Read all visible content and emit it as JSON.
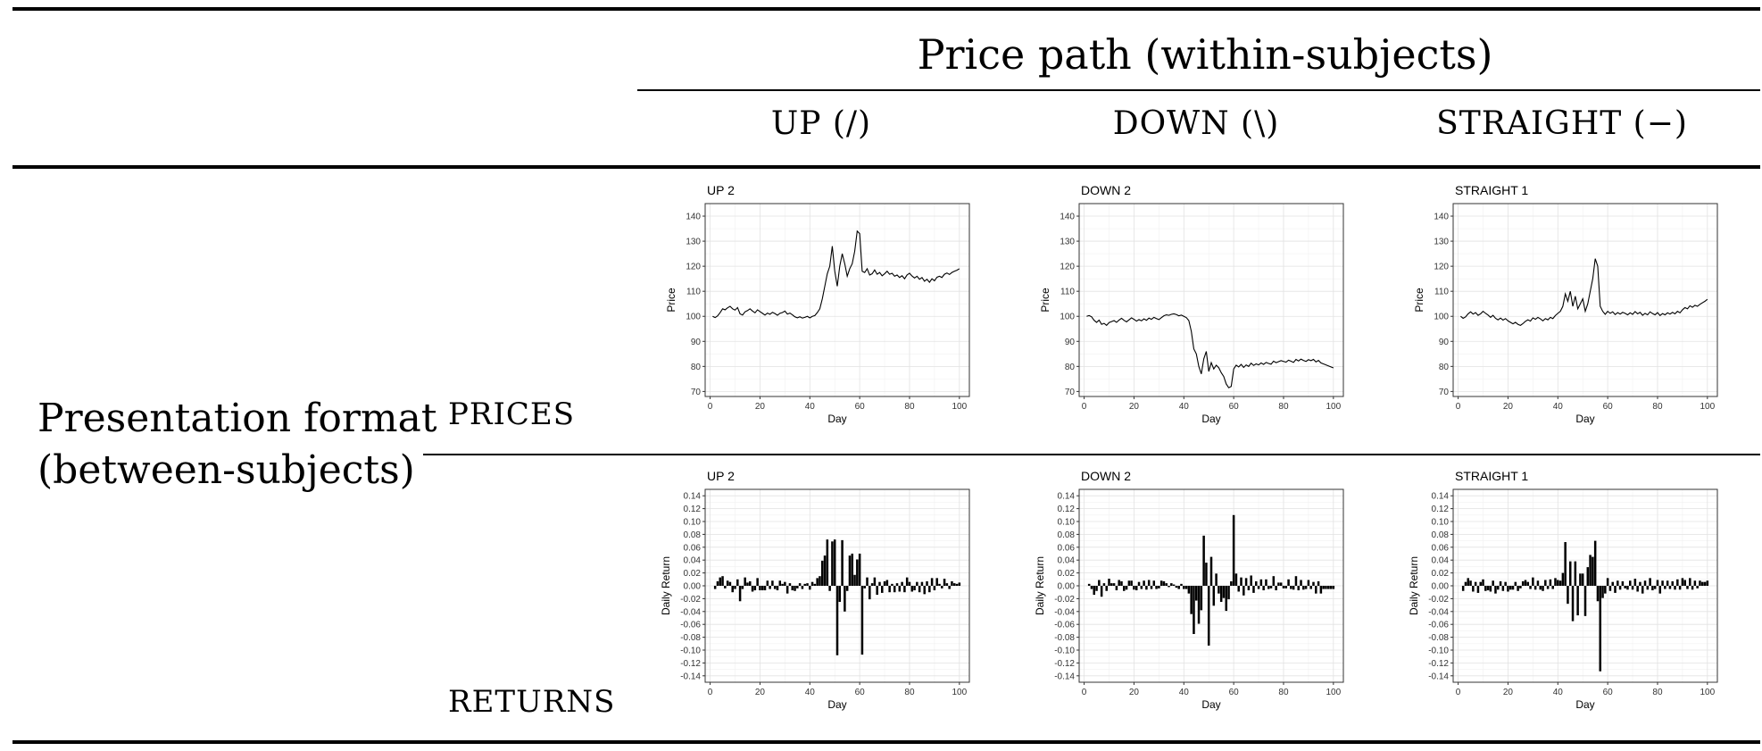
{
  "header": {
    "title": "Price path (within-subjects)",
    "columns": [
      "UP (/)",
      "DOWN (\\)",
      "STRAIGHT (−)"
    ]
  },
  "side_label": {
    "line1": "Presentation format",
    "line2": "(between-subjects)"
  },
  "rows": [
    "PRICES",
    "RETURNS"
  ],
  "chart_data": [
    {
      "type": "line",
      "title": "UP 2",
      "xlabel": "Day",
      "ylabel": "Price",
      "xlim": [
        0,
        100
      ],
      "ylim": [
        68,
        145
      ],
      "xticks": [
        0,
        20,
        40,
        60,
        80,
        100
      ],
      "yticks": [
        70,
        80,
        90,
        100,
        110,
        120,
        130,
        140
      ],
      "grid": true,
      "x": [
        1,
        2,
        3,
        4,
        5,
        6,
        7,
        8,
        9,
        10,
        11,
        12,
        13,
        14,
        15,
        16,
        17,
        18,
        19,
        20,
        21,
        22,
        23,
        24,
        25,
        26,
        27,
        28,
        29,
        30,
        31,
        32,
        33,
        34,
        35,
        36,
        37,
        38,
        39,
        40,
        41,
        42,
        43,
        44,
        45,
        46,
        47,
        48,
        49,
        50,
        51,
        52,
        53,
        54,
        55,
        56,
        57,
        58,
        59,
        60,
        61,
        62,
        63,
        64,
        65,
        66,
        67,
        68,
        69,
        70,
        71,
        72,
        73,
        74,
        75,
        76,
        77,
        78,
        79,
        80,
        81,
        82,
        83,
        84,
        85,
        86,
        87,
        88,
        89,
        90,
        91,
        92,
        93,
        94,
        95,
        96,
        97,
        98,
        99,
        100
      ],
      "y": [
        100,
        99.5,
        100.2,
        101.5,
        103,
        102.6,
        103.4,
        104,
        103,
        102.5,
        103.5,
        101,
        100.5,
        101.8,
        102.3,
        103,
        102.1,
        101.4,
        102.6,
        101.9,
        101.2,
        100.5,
        101.3,
        100.8,
        101.6,
        101.1,
        100.4,
        101.2,
        101.5,
        102.1,
        100.9,
        101.3,
        100.6,
        99.8,
        99.4,
        99.8,
        99.3,
        99.6,
        100,
        99.4,
        100,
        100.3,
        101.5,
        103,
        107,
        112,
        117,
        120,
        128,
        118,
        112,
        120,
        125,
        121,
        116,
        119,
        121,
        126,
        134,
        133,
        118,
        117.5,
        119,
        116.5,
        117,
        118.5,
        116.8,
        117.5,
        116.2,
        117,
        118,
        116.8,
        117.2,
        116,
        116.5,
        115.5,
        116.2,
        115,
        116.5,
        117.2,
        116.1,
        115.3,
        116,
        114.8,
        115.5,
        114,
        114.8,
        113.6,
        115,
        114.2,
        115.6,
        116,
        115.5,
        116.8,
        117.3,
        116.7,
        117.5,
        118,
        118.4,
        119
      ]
    },
    {
      "type": "line",
      "title": "DOWN 2",
      "xlabel": "Day",
      "ylabel": "Price",
      "xlim": [
        0,
        100
      ],
      "ylim": [
        68,
        145
      ],
      "xticks": [
        0,
        20,
        40,
        60,
        80,
        100
      ],
      "yticks": [
        70,
        80,
        90,
        100,
        110,
        120,
        130,
        140
      ],
      "grid": true,
      "x": [
        1,
        2,
        3,
        4,
        5,
        6,
        7,
        8,
        9,
        10,
        11,
        12,
        13,
        14,
        15,
        16,
        17,
        18,
        19,
        20,
        21,
        22,
        23,
        24,
        25,
        26,
        27,
        28,
        29,
        30,
        31,
        32,
        33,
        34,
        35,
        36,
        37,
        38,
        39,
        40,
        41,
        42,
        43,
        44,
        45,
        46,
        47,
        48,
        49,
        50,
        51,
        52,
        53,
        54,
        55,
        56,
        57,
        58,
        59,
        60,
        61,
        62,
        63,
        64,
        65,
        66,
        67,
        68,
        69,
        70,
        71,
        72,
        73,
        74,
        75,
        76,
        77,
        78,
        79,
        80,
        81,
        82,
        83,
        84,
        85,
        86,
        87,
        88,
        89,
        90,
        91,
        92,
        93,
        94,
        95,
        96,
        97,
        98,
        99,
        100
      ],
      "y": [
        100,
        100.3,
        99.8,
        98.4,
        97.6,
        98.5,
        96.8,
        97.2,
        96.4,
        97.5,
        97.9,
        98.3,
        97.6,
        98.5,
        99.2,
        98.4,
        97.8,
        98.6,
        99.4,
        98.8,
        98.1,
        98.7,
        98.2,
        99,
        98.4,
        99.3,
        98.8,
        99.6,
        99.1,
        98.7,
        99.5,
        100.2,
        100.6,
        100.4,
        100.8,
        101,
        100.7,
        100.2,
        100.5,
        100,
        99.5,
        98.3,
        94,
        87,
        85,
        80,
        77,
        83,
        86,
        78,
        81.5,
        79,
        80.5,
        79.5,
        77.5,
        76,
        73,
        71.5,
        72,
        79,
        80.5,
        79.8,
        80.8,
        79.6,
        80.6,
        80,
        81.3,
        80.4,
        81,
        80.6,
        81.4,
        80.8,
        81.6,
        81.2,
        80.9,
        82.1,
        81.5,
        81.9,
        82.3,
        82,
        81.7,
        82.5,
        82.1,
        81.6,
        82.8,
        82.2,
        82.9,
        82.4,
        82,
        82.7,
        82.3,
        82.8,
        81.8,
        82.4,
        81.4,
        81,
        80.6,
        80.2,
        79.8,
        79.4
      ]
    },
    {
      "type": "line",
      "title": "STRAIGHT 1",
      "xlabel": "Day",
      "ylabel": "Price",
      "xlim": [
        0,
        100
      ],
      "ylim": [
        68,
        145
      ],
      "xticks": [
        0,
        20,
        40,
        60,
        80,
        100
      ],
      "yticks": [
        70,
        80,
        90,
        100,
        110,
        120,
        130,
        140
      ],
      "grid": true,
      "x": [
        1,
        2,
        3,
        4,
        5,
        6,
        7,
        8,
        9,
        10,
        11,
        12,
        13,
        14,
        15,
        16,
        17,
        18,
        19,
        20,
        21,
        22,
        23,
        24,
        25,
        26,
        27,
        28,
        29,
        30,
        31,
        32,
        33,
        34,
        35,
        36,
        37,
        38,
        39,
        40,
        41,
        42,
        43,
        44,
        45,
        46,
        47,
        48,
        49,
        50,
        51,
        52,
        53,
        54,
        55,
        56,
        57,
        58,
        59,
        60,
        61,
        62,
        63,
        64,
        65,
        66,
        67,
        68,
        69,
        70,
        71,
        72,
        73,
        74,
        75,
        76,
        77,
        78,
        79,
        80,
        81,
        82,
        83,
        84,
        85,
        86,
        87,
        88,
        89,
        90,
        91,
        92,
        93,
        94,
        95,
        96,
        97,
        98,
        99,
        100
      ],
      "y": [
        100,
        99.2,
        99.8,
        101,
        101.8,
        100.9,
        101.5,
        100.4,
        101,
        102,
        101.2,
        100.5,
        99.6,
        100.4,
        99.2,
        98.6,
        99.3,
        98.5,
        99.1,
        98.2,
        97.6,
        97,
        97.6,
        96.8,
        96.4,
        97.1,
        98,
        98.6,
        98.1,
        99.4,
        98.8,
        99.6,
        99,
        98.2,
        99.1,
        98.6,
        99.6,
        99.1,
        100.3,
        101.2,
        102,
        104,
        109,
        106,
        110,
        104,
        108,
        103,
        105,
        107,
        102,
        105,
        110,
        115,
        123,
        120,
        104,
        102,
        100.8,
        102,
        101.2,
        101.8,
        100.7,
        101.5,
        100.9,
        101.6,
        101.2,
        100.6,
        101.4,
        100.8,
        101.9,
        101,
        101.6,
        100.4,
        101.2,
        100.6,
        101.8,
        101.1,
        100.6,
        101.5,
        100.3,
        101.1,
        100.6,
        101.4,
        100.9,
        101.6,
        101,
        102,
        101.4,
        102.6,
        103.5,
        103,
        104.2,
        103.6,
        104.4,
        104,
        104.8,
        105.4,
        106,
        106.8
      ]
    },
    {
      "type": "bar",
      "title": "UP 2",
      "xlabel": "Day",
      "ylabel": "Daily Return",
      "xlim": [
        0,
        100
      ],
      "ylim": [
        -0.15,
        0.15
      ],
      "xticks": [
        0,
        20,
        40,
        60,
        80,
        100
      ],
      "yticks": [
        -0.14,
        -0.12,
        -0.1,
        -0.08,
        -0.06,
        -0.04,
        -0.02,
        0.0,
        0.02,
        0.04,
        0.06,
        0.08,
        0.1,
        0.12,
        0.14
      ],
      "grid": true,
      "x": [
        1,
        2,
        3,
        4,
        5,
        6,
        7,
        8,
        9,
        10,
        11,
        12,
        13,
        14,
        15,
        16,
        17,
        18,
        19,
        20,
        21,
        22,
        23,
        24,
        25,
        26,
        27,
        28,
        29,
        30,
        31,
        32,
        33,
        34,
        35,
        36,
        37,
        38,
        39,
        40,
        41,
        42,
        43,
        44,
        45,
        46,
        47,
        48,
        49,
        50,
        51,
        52,
        53,
        54,
        55,
        56,
        57,
        58,
        59,
        60,
        61,
        62,
        63,
        64,
        65,
        66,
        67,
        68,
        69,
        70,
        71,
        72,
        73,
        74,
        75,
        76,
        77,
        78,
        79,
        80,
        81,
        82,
        83,
        84,
        85,
        86,
        87,
        88,
        89,
        90,
        91,
        92,
        93,
        94,
        95,
        96,
        97,
        98,
        99,
        100
      ],
      "values": [
        0,
        -0.005,
        0.007,
        0.013,
        0.015,
        -0.004,
        0.008,
        0.006,
        -0.01,
        -0.005,
        0.01,
        -0.024,
        -0.005,
        0.013,
        0.005,
        0.007,
        -0.009,
        -0.007,
        0.012,
        -0.007,
        -0.007,
        -0.007,
        0.008,
        -0.005,
        0.008,
        -0.005,
        -0.007,
        0.008,
        0.003,
        0.006,
        -0.012,
        0.004,
        -0.007,
        -0.008,
        -0.004,
        0.004,
        -0.005,
        0.003,
        0.004,
        -0.006,
        0.006,
        0.003,
        0.012,
        0.015,
        0.039,
        0.047,
        0.072,
        -0.008,
        0.069,
        0.072,
        -0.108,
        -0.025,
        0.071,
        -0.04,
        -0.008,
        0.047,
        0.05,
        0.017,
        0.041,
        0.05,
        -0.107,
        -0.004,
        0.013,
        -0.021,
        0.004,
        0.013,
        -0.014,
        0.006,
        -0.011,
        0.007,
        0.009,
        -0.01,
        0.003,
        -0.01,
        0.004,
        -0.009,
        0.006,
        -0.01,
        0.013,
        0.006,
        -0.009,
        -0.007,
        0.006,
        -0.01,
        0.006,
        -0.013,
        0.007,
        -0.01,
        0.012,
        -0.007,
        0.012,
        0.003,
        -0.004,
        0.011,
        0.004,
        -0.005,
        0.007,
        0.004,
        0.003,
        0.005
      ]
    },
    {
      "type": "bar",
      "title": "DOWN 2",
      "xlabel": "Day",
      "ylabel": "Daily Return",
      "xlim": [
        0,
        100
      ],
      "ylim": [
        -0.15,
        0.15
      ],
      "xticks": [
        0,
        20,
        40,
        60,
        80,
        100
      ],
      "yticks": [
        -0.14,
        -0.12,
        -0.1,
        -0.08,
        -0.06,
        -0.04,
        -0.02,
        0.0,
        0.02,
        0.04,
        0.06,
        0.08,
        0.1,
        0.12,
        0.14
      ],
      "grid": true,
      "x": [
        1,
        2,
        3,
        4,
        5,
        6,
        7,
        8,
        9,
        10,
        11,
        12,
        13,
        14,
        15,
        16,
        17,
        18,
        19,
        20,
        21,
        22,
        23,
        24,
        25,
        26,
        27,
        28,
        29,
        30,
        31,
        32,
        33,
        34,
        35,
        36,
        37,
        38,
        39,
        40,
        41,
        42,
        43,
        44,
        45,
        46,
        47,
        48,
        49,
        50,
        51,
        52,
        53,
        54,
        55,
        56,
        57,
        58,
        59,
        60,
        61,
        62,
        63,
        64,
        65,
        66,
        67,
        68,
        69,
        70,
        71,
        72,
        73,
        74,
        75,
        76,
        77,
        78,
        79,
        80,
        81,
        82,
        83,
        84,
        85,
        86,
        87,
        88,
        89,
        90,
        91,
        92,
        93,
        94,
        95,
        96,
        97,
        98,
        99,
        100
      ],
      "values": [
        0,
        0.003,
        -0.005,
        -0.014,
        -0.008,
        0.009,
        -0.017,
        0.004,
        -0.008,
        0.011,
        0.004,
        0.004,
        -0.007,
        0.009,
        0.007,
        -0.008,
        -0.006,
        0.008,
        0.008,
        -0.006,
        -0.007,
        0.006,
        -0.005,
        0.008,
        -0.006,
        0.009,
        -0.005,
        0.008,
        -0.005,
        -0.004,
        0.008,
        0.007,
        0.004,
        -0.002,
        0.004,
        0.002,
        -0.003,
        -0.005,
        0.003,
        -0.005,
        -0.005,
        -0.012,
        -0.044,
        -0.075,
        -0.023,
        -0.059,
        -0.038,
        0.078,
        0.036,
        -0.093,
        0.045,
        -0.031,
        0.019,
        -0.012,
        -0.025,
        -0.019,
        -0.039,
        -0.021,
        0.007,
        0.11,
        0.019,
        -0.009,
        0.013,
        -0.015,
        0.012,
        -0.007,
        0.016,
        -0.011,
        0.007,
        -0.005,
        0.01,
        -0.007,
        0.01,
        -0.005,
        -0.004,
        0.015,
        -0.007,
        0.005,
        0.005,
        -0.004,
        -0.004,
        0.01,
        -0.005,
        -0.006,
        0.015,
        -0.007,
        0.009,
        -0.006,
        -0.005,
        0.009,
        -0.005,
        0.006,
        -0.012,
        0.007,
        -0.012,
        -0.005,
        -0.005,
        -0.005,
        -0.005,
        -0.005
      ]
    },
    {
      "type": "bar",
      "title": "STRAIGHT 1",
      "xlabel": "Day",
      "ylabel": "Daily Return",
      "xlim": [
        0,
        100
      ],
      "ylim": [
        -0.15,
        0.15
      ],
      "xticks": [
        0,
        20,
        40,
        60,
        80,
        100
      ],
      "yticks": [
        -0.14,
        -0.12,
        -0.1,
        -0.08,
        -0.06,
        -0.04,
        -0.02,
        0.0,
        0.02,
        0.04,
        0.06,
        0.08,
        0.1,
        0.12,
        0.14
      ],
      "grid": true,
      "x": [
        1,
        2,
        3,
        4,
        5,
        6,
        7,
        8,
        9,
        10,
        11,
        12,
        13,
        14,
        15,
        16,
        17,
        18,
        19,
        20,
        21,
        22,
        23,
        24,
        25,
        26,
        27,
        28,
        29,
        30,
        31,
        32,
        33,
        34,
        35,
        36,
        37,
        38,
        39,
        40,
        41,
        42,
        43,
        44,
        45,
        46,
        47,
        48,
        49,
        50,
        51,
        52,
        53,
        54,
        55,
        56,
        57,
        58,
        59,
        60,
        61,
        62,
        63,
        64,
        65,
        66,
        67,
        68,
        69,
        70,
        71,
        72,
        73,
        74,
        75,
        76,
        77,
        78,
        79,
        80,
        81,
        82,
        83,
        84,
        85,
        86,
        87,
        88,
        89,
        90,
        91,
        92,
        93,
        94,
        95,
        96,
        97,
        98,
        99,
        100
      ],
      "values": [
        0,
        -0.008,
        0.006,
        0.012,
        0.008,
        -0.009,
        0.006,
        -0.011,
        0.006,
        0.01,
        -0.008,
        -0.007,
        -0.009,
        0.008,
        -0.012,
        -0.006,
        0.007,
        -0.008,
        0.006,
        -0.009,
        -0.006,
        -0.006,
        0.006,
        -0.008,
        -0.004,
        0.007,
        0.009,
        0.006,
        -0.005,
        0.013,
        -0.006,
        0.008,
        -0.006,
        -0.008,
        0.009,
        -0.005,
        0.01,
        -0.005,
        0.012,
        0.009,
        0.008,
        0.02,
        0.068,
        -0.028,
        0.038,
        -0.055,
        0.038,
        -0.046,
        0.019,
        0.019,
        -0.047,
        0.029,
        0.048,
        0.045,
        0.07,
        -0.024,
        -0.133,
        -0.019,
        -0.012,
        0.012,
        -0.008,
        0.006,
        -0.011,
        0.008,
        -0.006,
        0.007,
        -0.004,
        -0.006,
        0.008,
        -0.006,
        0.011,
        -0.009,
        0.006,
        -0.012,
        0.008,
        -0.006,
        0.012,
        -0.007,
        -0.005,
        0.009,
        -0.012,
        0.008,
        -0.005,
        0.008,
        -0.005,
        0.007,
        -0.006,
        0.01,
        -0.006,
        0.012,
        0.009,
        -0.005,
        0.012,
        -0.006,
        0.008,
        -0.004,
        0.008,
        0.006,
        0.006,
        0.008
      ]
    }
  ]
}
